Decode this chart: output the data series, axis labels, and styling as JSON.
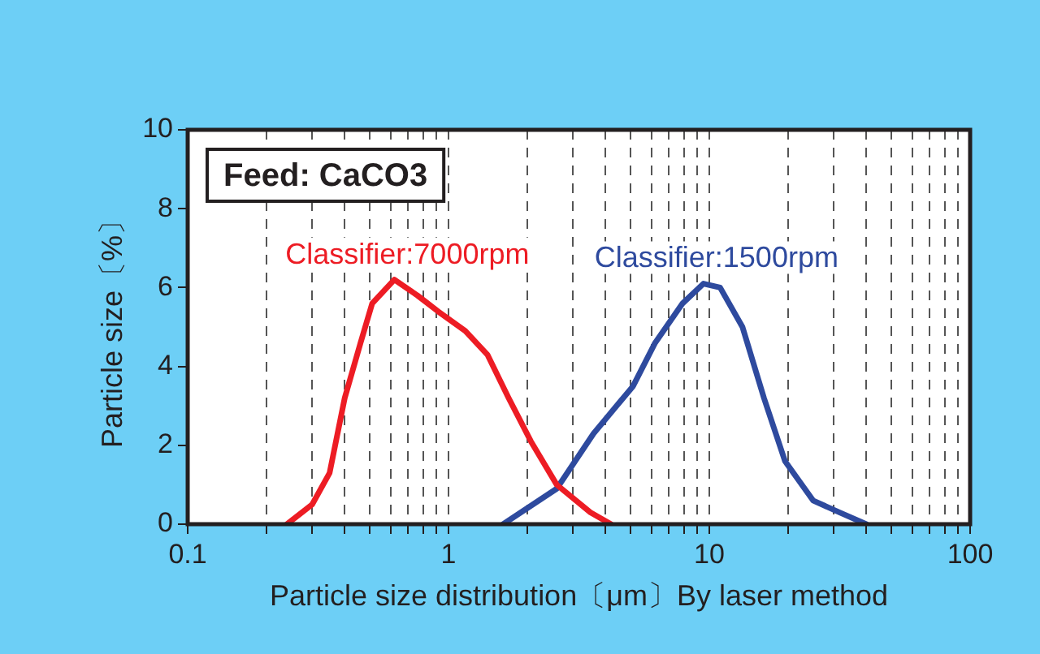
{
  "chart_data": {
    "type": "line",
    "xlabel": "Particle size distribution〔μm〕By laser method",
    "ylabel": "Particle size〔%〕",
    "log": "x",
    "xlim": [
      0.1,
      100
    ],
    "ylim": [
      0,
      10
    ],
    "xticks": [
      0.1,
      {
        "value": 0.2,
        "label": null
      },
      {
        "value": 0.3,
        "label": null
      },
      {
        "value": 0.4,
        "label": null
      },
      {
        "value": 0.5,
        "label": null
      },
      {
        "value": 0.6,
        "label": null
      },
      {
        "value": 0.7,
        "label": null
      },
      {
        "value": 0.8,
        "label": null
      },
      {
        "value": 0.9,
        "label": null
      },
      1,
      {
        "value": 2,
        "label": null
      },
      {
        "value": 3,
        "label": null
      },
      {
        "value": 4,
        "label": null
      },
      {
        "value": 5,
        "label": null
      },
      {
        "value": 6,
        "label": null
      },
      {
        "value": 7,
        "label": null
      },
      {
        "value": 8,
        "label": null
      },
      {
        "value": 9,
        "label": null
      },
      10,
      {
        "value": 20,
        "label": null
      },
      {
        "value": 30,
        "label": null
      },
      {
        "value": 40,
        "label": null
      },
      {
        "value": 50,
        "label": null
      },
      {
        "value": 60,
        "label": null
      },
      {
        "value": 70,
        "label": null
      },
      {
        "value": 80,
        "label": null
      },
      {
        "value": 90,
        "label": null
      },
      100
    ],
    "yticks": [
      0,
      2,
      4,
      6,
      8,
      10
    ],
    "grid": "x",
    "legend": false,
    "marker": "none",
    "line_style": "solid",
    "annotations": [
      "Feed: CaCO3"
    ],
    "series": [
      {
        "name": "Classifier:7000rpm",
        "color": "#ed1c24",
        "x": [
          0.24,
          0.3,
          0.35,
          0.4,
          0.46,
          0.51,
          0.62,
          0.76,
          0.91,
          1.16,
          1.41,
          1.7,
          2.07,
          2.6,
          3.5,
          4.2
        ],
        "values": [
          0,
          0.5,
          1.3,
          3.2,
          4.6,
          5.6,
          6.2,
          5.8,
          5.4,
          4.9,
          4.3,
          3.2,
          2.1,
          1.0,
          0.3,
          0
        ]
      },
      {
        "name": "Classifier:1500rpm",
        "color": "#2e4a9e",
        "x": [
          1.62,
          2.6,
          3.6,
          5.1,
          6.2,
          7.9,
          9.5,
          11,
          13.4,
          16.2,
          19.5,
          25,
          31.5,
          40
        ],
        "values": [
          0,
          0.9,
          2.3,
          3.5,
          4.6,
          5.6,
          6.1,
          6.0,
          5.0,
          3.2,
          1.6,
          0.6,
          0.3,
          0
        ]
      }
    ]
  }
}
